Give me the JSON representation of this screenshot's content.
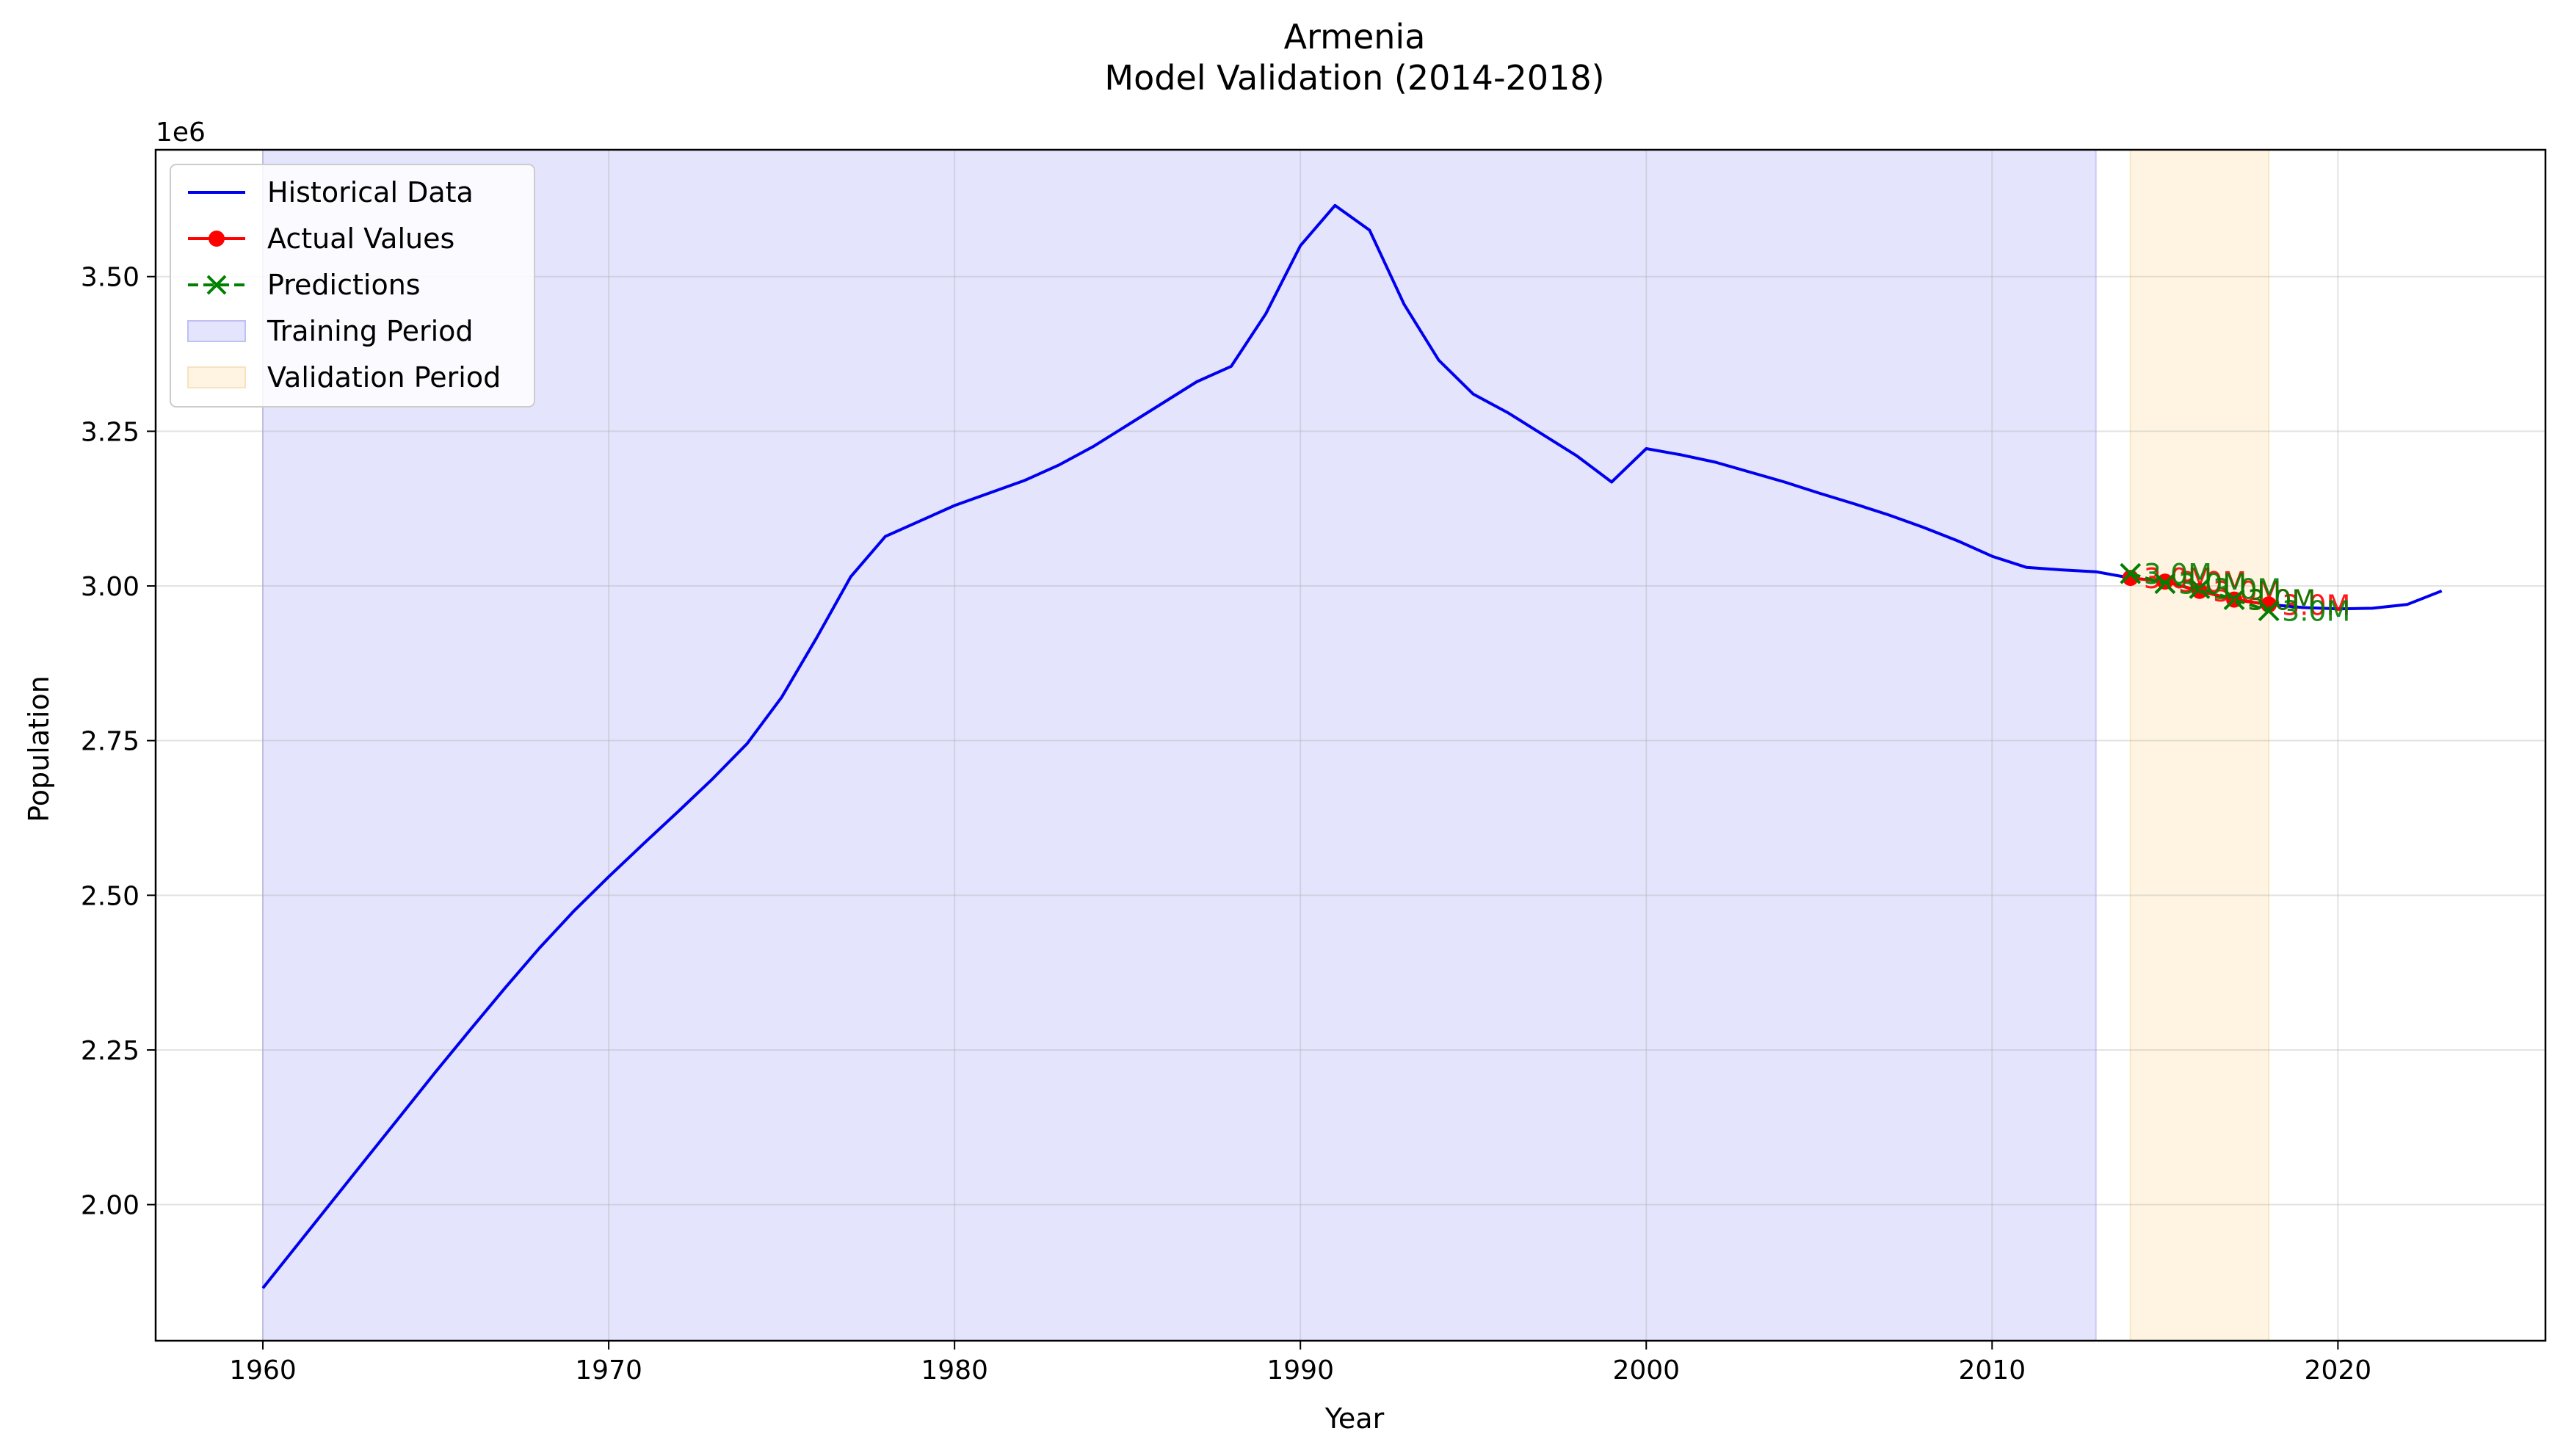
{
  "chart_data": {
    "type": "line",
    "title": "Armenia",
    "subtitle": "Model Validation (2014-2018)",
    "xlabel": "Year",
    "ylabel": "Population",
    "y_multiplier_label": "1e6",
    "xlim": [
      1956.9,
      2026.0
    ],
    "ylim": [
      1780000,
      3705000
    ],
    "x_ticks": [
      1960,
      1970,
      1980,
      1990,
      2000,
      2010,
      2020
    ],
    "y_ticks": [
      2000000,
      2250000,
      2500000,
      2750000,
      3000000,
      3250000,
      3500000
    ],
    "y_tick_labels": [
      "2.00",
      "2.25",
      "2.50",
      "2.75",
      "3.00",
      "3.25",
      "3.50"
    ],
    "grid": true,
    "legend_position": "top-left",
    "colors": {
      "historical": "#0000ee",
      "actual": "#ff0000",
      "predictions": "#008000",
      "training_fill": "#e4e4fd",
      "validation_fill": "#fef4e1"
    },
    "shaded_regions": [
      {
        "name": "Training Period",
        "x_start": 1960,
        "x_end": 2013
      },
      {
        "name": "Validation Period",
        "x_start": 2014,
        "x_end": 2018
      }
    ],
    "series": [
      {
        "name": "Historical Data",
        "style": "solid",
        "x": [
          1960,
          1961,
          1962,
          1963,
          1964,
          1965,
          1966,
          1967,
          1968,
          1969,
          1970,
          1971,
          1972,
          1973,
          1974,
          1975,
          1976,
          1977,
          1978,
          1979,
          1980,
          1981,
          1982,
          1983,
          1984,
          1985,
          1986,
          1987,
          1988,
          1989,
          1990,
          1991,
          1992,
          1993,
          1994,
          1995,
          1996,
          1997,
          1998,
          1999,
          2000,
          2001,
          2002,
          2003,
          2004,
          2005,
          2006,
          2007,
          2008,
          2009,
          2010,
          2011,
          2012,
          2013,
          2014,
          2015,
          2016,
          2017,
          2018,
          2019,
          2020,
          2021,
          2022,
          2023
        ],
        "values": [
          1865000,
          1935000,
          2005000,
          2075000,
          2145000,
          2215000,
          2283000,
          2350000,
          2415000,
          2475000,
          2530000,
          2583000,
          2635000,
          2688000,
          2745000,
          2820000,
          2915000,
          3015000,
          3080000,
          3105000,
          3130000,
          3150000,
          3170000,
          3195000,
          3225000,
          3260000,
          3295000,
          3330000,
          3355000,
          3440000,
          3550000,
          3615000,
          3575000,
          3455000,
          3365000,
          3310000,
          3280000,
          3245000,
          3210000,
          3168000,
          3222000,
          3212000,
          3200000,
          3184000,
          3168000,
          3150000,
          3133000,
          3115000,
          3095000,
          3073000,
          3048000,
          3030000,
          3026000,
          3023000,
          3013000,
          3007000,
          2992000,
          2978000,
          2970000,
          2965000,
          2963000,
          2964000,
          2970000,
          2992000
        ]
      },
      {
        "name": "Actual Values",
        "style": "solid-circle-markers",
        "x": [
          2014,
          2015,
          2016,
          2017,
          2018
        ],
        "values": [
          3013000,
          3007000,
          2992000,
          2978000,
          2970000
        ]
      },
      {
        "name": "Predictions",
        "style": "dashed-x-markers",
        "x": [
          2014,
          2015,
          2016,
          2017,
          2018
        ],
        "values": [
          3020000,
          3004000,
          2996000,
          2978000,
          2960000
        ]
      }
    ],
    "annotations": [
      {
        "text": "3.0M",
        "x": 2014,
        "y": 3013000,
        "series": "Actual Values"
      },
      {
        "text": "3.0M",
        "x": 2015,
        "y": 3007000,
        "series": "Actual Values"
      },
      {
        "text": "3.0M",
        "x": 2016,
        "y": 2992000,
        "series": "Actual Values"
      },
      {
        "text": "3.0M",
        "x": 2017,
        "y": 2978000,
        "series": "Actual Values"
      },
      {
        "text": "3.0M",
        "x": 2018,
        "y": 2970000,
        "series": "Actual Values"
      },
      {
        "text": "3.0M",
        "x": 2014,
        "y": 3020000,
        "series": "Predictions"
      },
      {
        "text": "3.0M",
        "x": 2015,
        "y": 3004000,
        "series": "Predictions"
      },
      {
        "text": "3.0M",
        "x": 2016,
        "y": 2996000,
        "series": "Predictions"
      },
      {
        "text": "3.0M",
        "x": 2017,
        "y": 2978000,
        "series": "Predictions"
      },
      {
        "text": "3.0M",
        "x": 2018,
        "y": 2960000,
        "series": "Predictions"
      }
    ],
    "legend": [
      "Historical Data",
      "Actual Values",
      "Predictions",
      "Training Period",
      "Validation Period"
    ]
  }
}
